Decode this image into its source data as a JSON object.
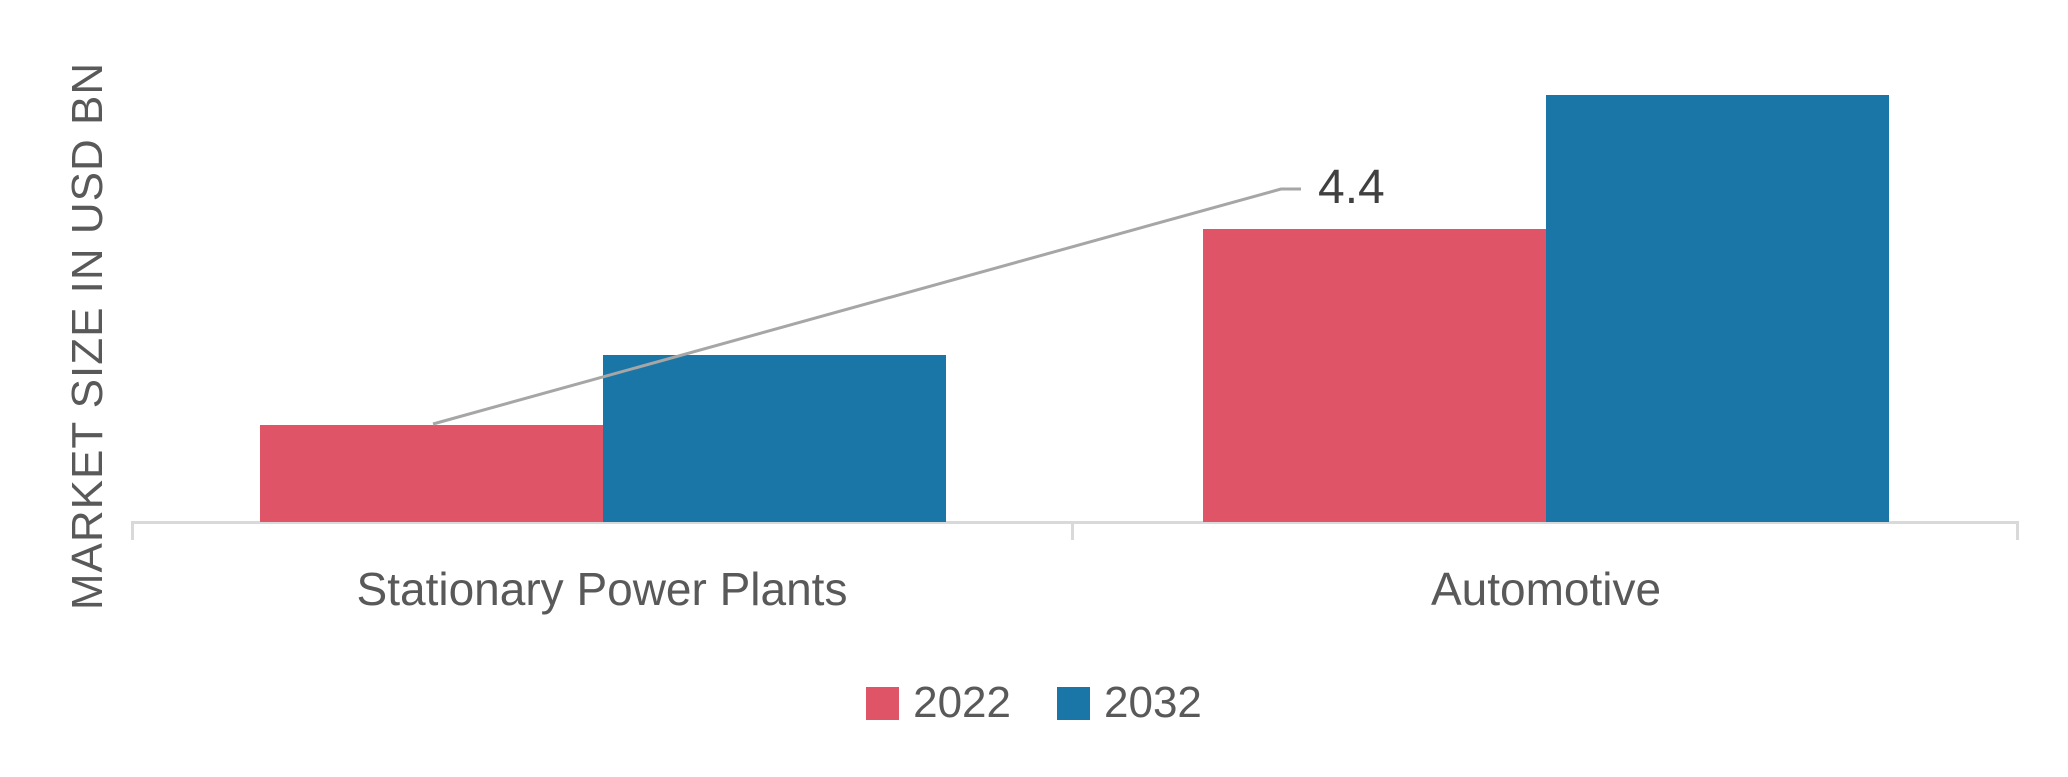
{
  "chart": {
    "y_axis_label": "MARKET SIZE IN USD BN",
    "annotation_text": "4.4"
  },
  "chart_data": {
    "type": "bar",
    "title": "",
    "xlabel": "",
    "ylabel": "MARKET SIZE IN USD BN",
    "categories": [
      "Stationary Power Plants",
      "Automotive"
    ],
    "series": [
      {
        "name": "2022",
        "color": "#E05468",
        "values": [
          4.4,
          13.3
        ]
      },
      {
        "name": "2032",
        "color": "#1B76A8",
        "values": [
          7.6,
          19.4
        ]
      }
    ],
    "ylim": [
      0,
      20
    ],
    "grid": false,
    "y_axis_ticks_visible": false,
    "legend_position": "bottom",
    "annotations": [
      {
        "text": "4.4",
        "value": 4.4,
        "target_series": "2022",
        "target_category": "Stationary Power Plants"
      }
    ]
  },
  "colors": {
    "series_2022": "#E05468",
    "series_2032": "#1B76A8",
    "axis_line": "#D9D9D9",
    "leader_line": "#A6A6A6",
    "text_gray": "#595959",
    "annotation_text": "#404040"
  }
}
